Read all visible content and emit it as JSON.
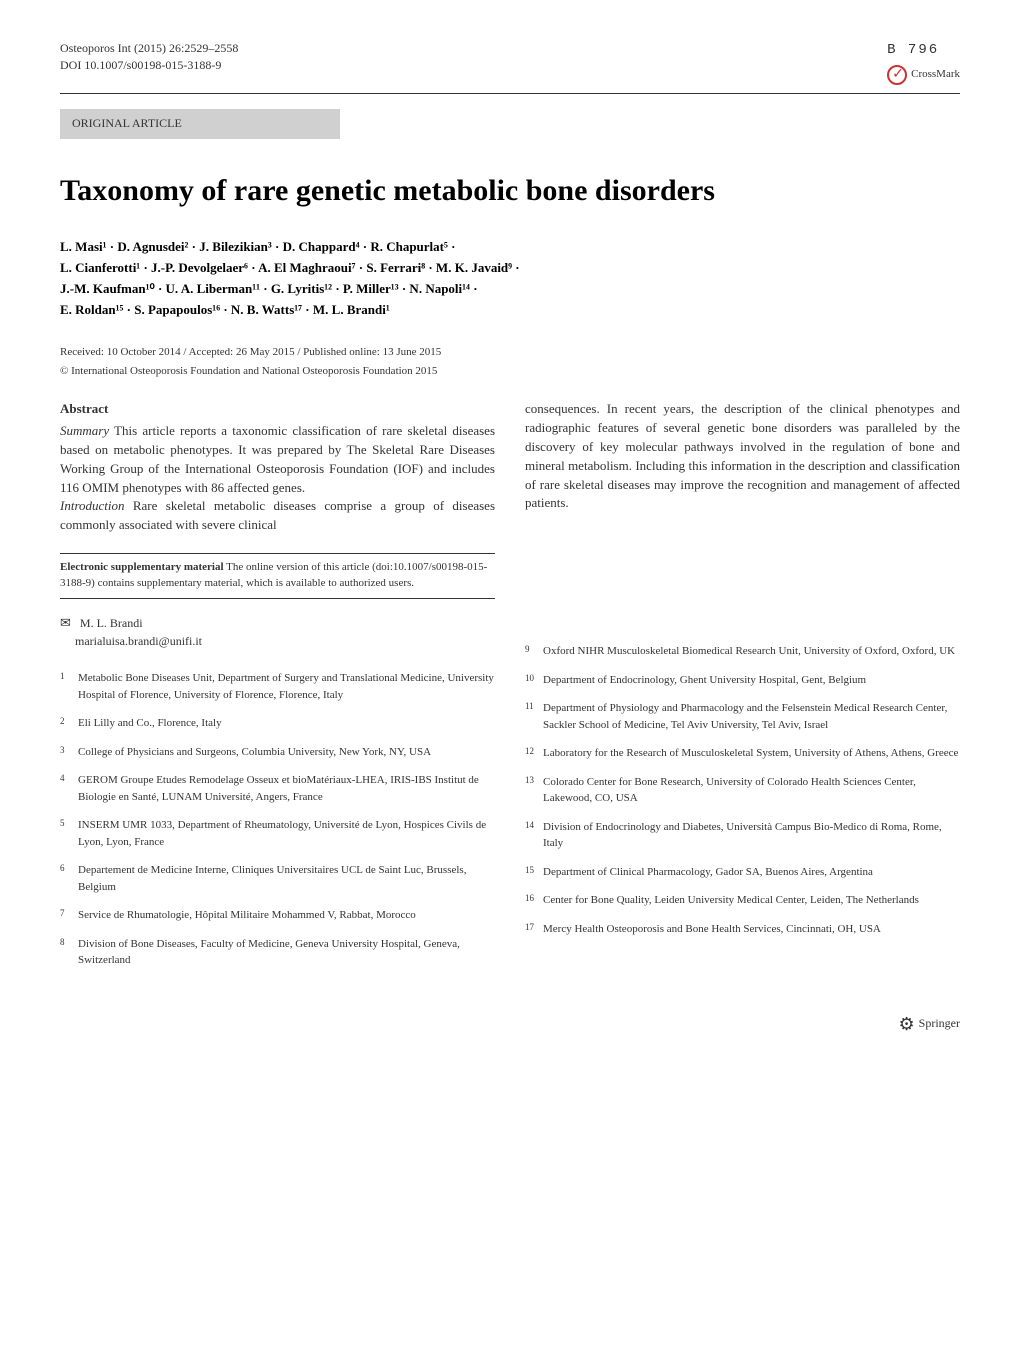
{
  "header": {
    "journal_ref": "Osteoporos Int (2015) 26:2529–2558",
    "doi": "DOI 10.1007/s00198-015-3188-9",
    "page_badge": "B 796",
    "crossmark": "CrossMark"
  },
  "article_type": "ORIGINAL ARTICLE",
  "title": "Taxonomy of rare genetic metabolic bone disorders",
  "authors_line1": "L. Masi¹ · D. Agnusdei² · J. Bilezikian³ · D. Chappard⁴ · R. Chapurlat⁵ ·",
  "authors_line2": "L. Cianferotti¹ · J.-P. Devolgelaer⁶ · A. El Maghraoui⁷ · S. Ferrari⁸ · M. K. Javaid⁹ ·",
  "authors_line3": "J.-M. Kaufman¹⁰ · U. A. Liberman¹¹ · G. Lyritis¹² · P. Miller¹³ · N. Napoli¹⁴ ·",
  "authors_line4": "E. Roldan¹⁵ · S. Papapoulos¹⁶ · N. B. Watts¹⁷ · M. L. Brandi¹",
  "received": "Received: 10 October 2014 / Accepted: 26 May 2015 / Published online: 13 June 2015",
  "copyright": "© International Osteoporosis Foundation and National Osteoporosis Foundation 2015",
  "abstract": {
    "heading": "Abstract",
    "summary_label": "Summary",
    "summary_text": " This article reports a taxonomic classification of rare skeletal diseases based on metabolic phenotypes. It was prepared by The Skeletal Rare Diseases Working Group of the International Osteoporosis Foundation (IOF) and includes 116 OMIM phenotypes with 86 affected genes.",
    "intro_label": "Introduction",
    "intro_text": " Rare skeletal metabolic diseases comprise a group of diseases commonly associated with severe clinical",
    "continuation": "consequences. In recent years, the description of the clinical phenotypes and radiographic features of several genetic bone disorders was paralleled by the discovery of key molecular pathways involved in the regulation of bone and mineral metabolism. Including this information in the description and classification of rare skeletal diseases may improve the recognition and management of affected patients."
  },
  "esm": {
    "label": "Electronic supplementary material",
    "text": " The online version of this article (doi:10.1007/s00198-015-3188-9) contains supplementary material, which is available to authorized users."
  },
  "corresponding": {
    "name": "M. L. Brandi",
    "email": "marialuisa.brandi@unifi.it"
  },
  "affiliations_left": [
    {
      "num": "1",
      "text": "Metabolic Bone Diseases Unit, Department of Surgery and Translational Medicine, University Hospital of Florence, University of Florence, Florence, Italy"
    },
    {
      "num": "2",
      "text": "Eli Lilly and Co., Florence, Italy"
    },
    {
      "num": "3",
      "text": "College of Physicians and Surgeons, Columbia University, New York, NY, USA"
    },
    {
      "num": "4",
      "text": "GEROM Groupe Etudes Remodelage Osseux et bioMatériaux-LHEA, IRIS-IBS Institut de Biologie en Santé, LUNAM Université, Angers, France"
    },
    {
      "num": "5",
      "text": "INSERM UMR 1033, Department of Rheumatology, Université de Lyon, Hospices Civils de Lyon, Lyon, France"
    },
    {
      "num": "6",
      "text": "Departement de Medicine Interne, Cliniques Universitaires UCL de Saint Luc, Brussels, Belgium"
    },
    {
      "num": "7",
      "text": "Service de Rhumatologie, Hôpital Militaire Mohammed V, Rabbat, Morocco"
    },
    {
      "num": "8",
      "text": "Division of Bone Diseases, Faculty of Medicine, Geneva University Hospital, Geneva, Switzerland"
    }
  ],
  "affiliations_right": [
    {
      "num": "9",
      "text": "Oxford NIHR Musculoskeletal Biomedical Research Unit, University of Oxford, Oxford, UK"
    },
    {
      "num": "10",
      "text": "Department of Endocrinology, Ghent University Hospital, Gent, Belgium"
    },
    {
      "num": "11",
      "text": "Department of Physiology and Pharmacology and the Felsenstein Medical Research Center, Sackler School of Medicine, Tel Aviv University, Tel Aviv, Israel"
    },
    {
      "num": "12",
      "text": "Laboratory for the Research of Musculoskeletal System, University of Athens, Athens, Greece"
    },
    {
      "num": "13",
      "text": "Colorado Center for Bone Research, University of Colorado Health Sciences Center, Lakewood, CO, USA"
    },
    {
      "num": "14",
      "text": "Division of Endocrinology and Diabetes, Università Campus Bio-Medico di Roma, Rome, Italy"
    },
    {
      "num": "15",
      "text": "Department of Clinical Pharmacology, Gador SA, Buenos Aires, Argentina"
    },
    {
      "num": "16",
      "text": "Center for Bone Quality, Leiden University Medical Center, Leiden, The Netherlands"
    },
    {
      "num": "17",
      "text": "Mercy Health Osteoporosis and Bone Health Services, Cincinnati, OH, USA"
    }
  ],
  "footer": {
    "publisher": "Springer"
  },
  "colors": {
    "background": "#ffffff",
    "text": "#333333",
    "article_type_bg": "#d0d0d0",
    "crossmark_red": "#cc3333",
    "divider": "#333333"
  },
  "typography": {
    "body_fontsize": 13,
    "title_fontsize": 30,
    "small_fontsize": 11,
    "font_family": "Georgia, Times New Roman, serif"
  }
}
